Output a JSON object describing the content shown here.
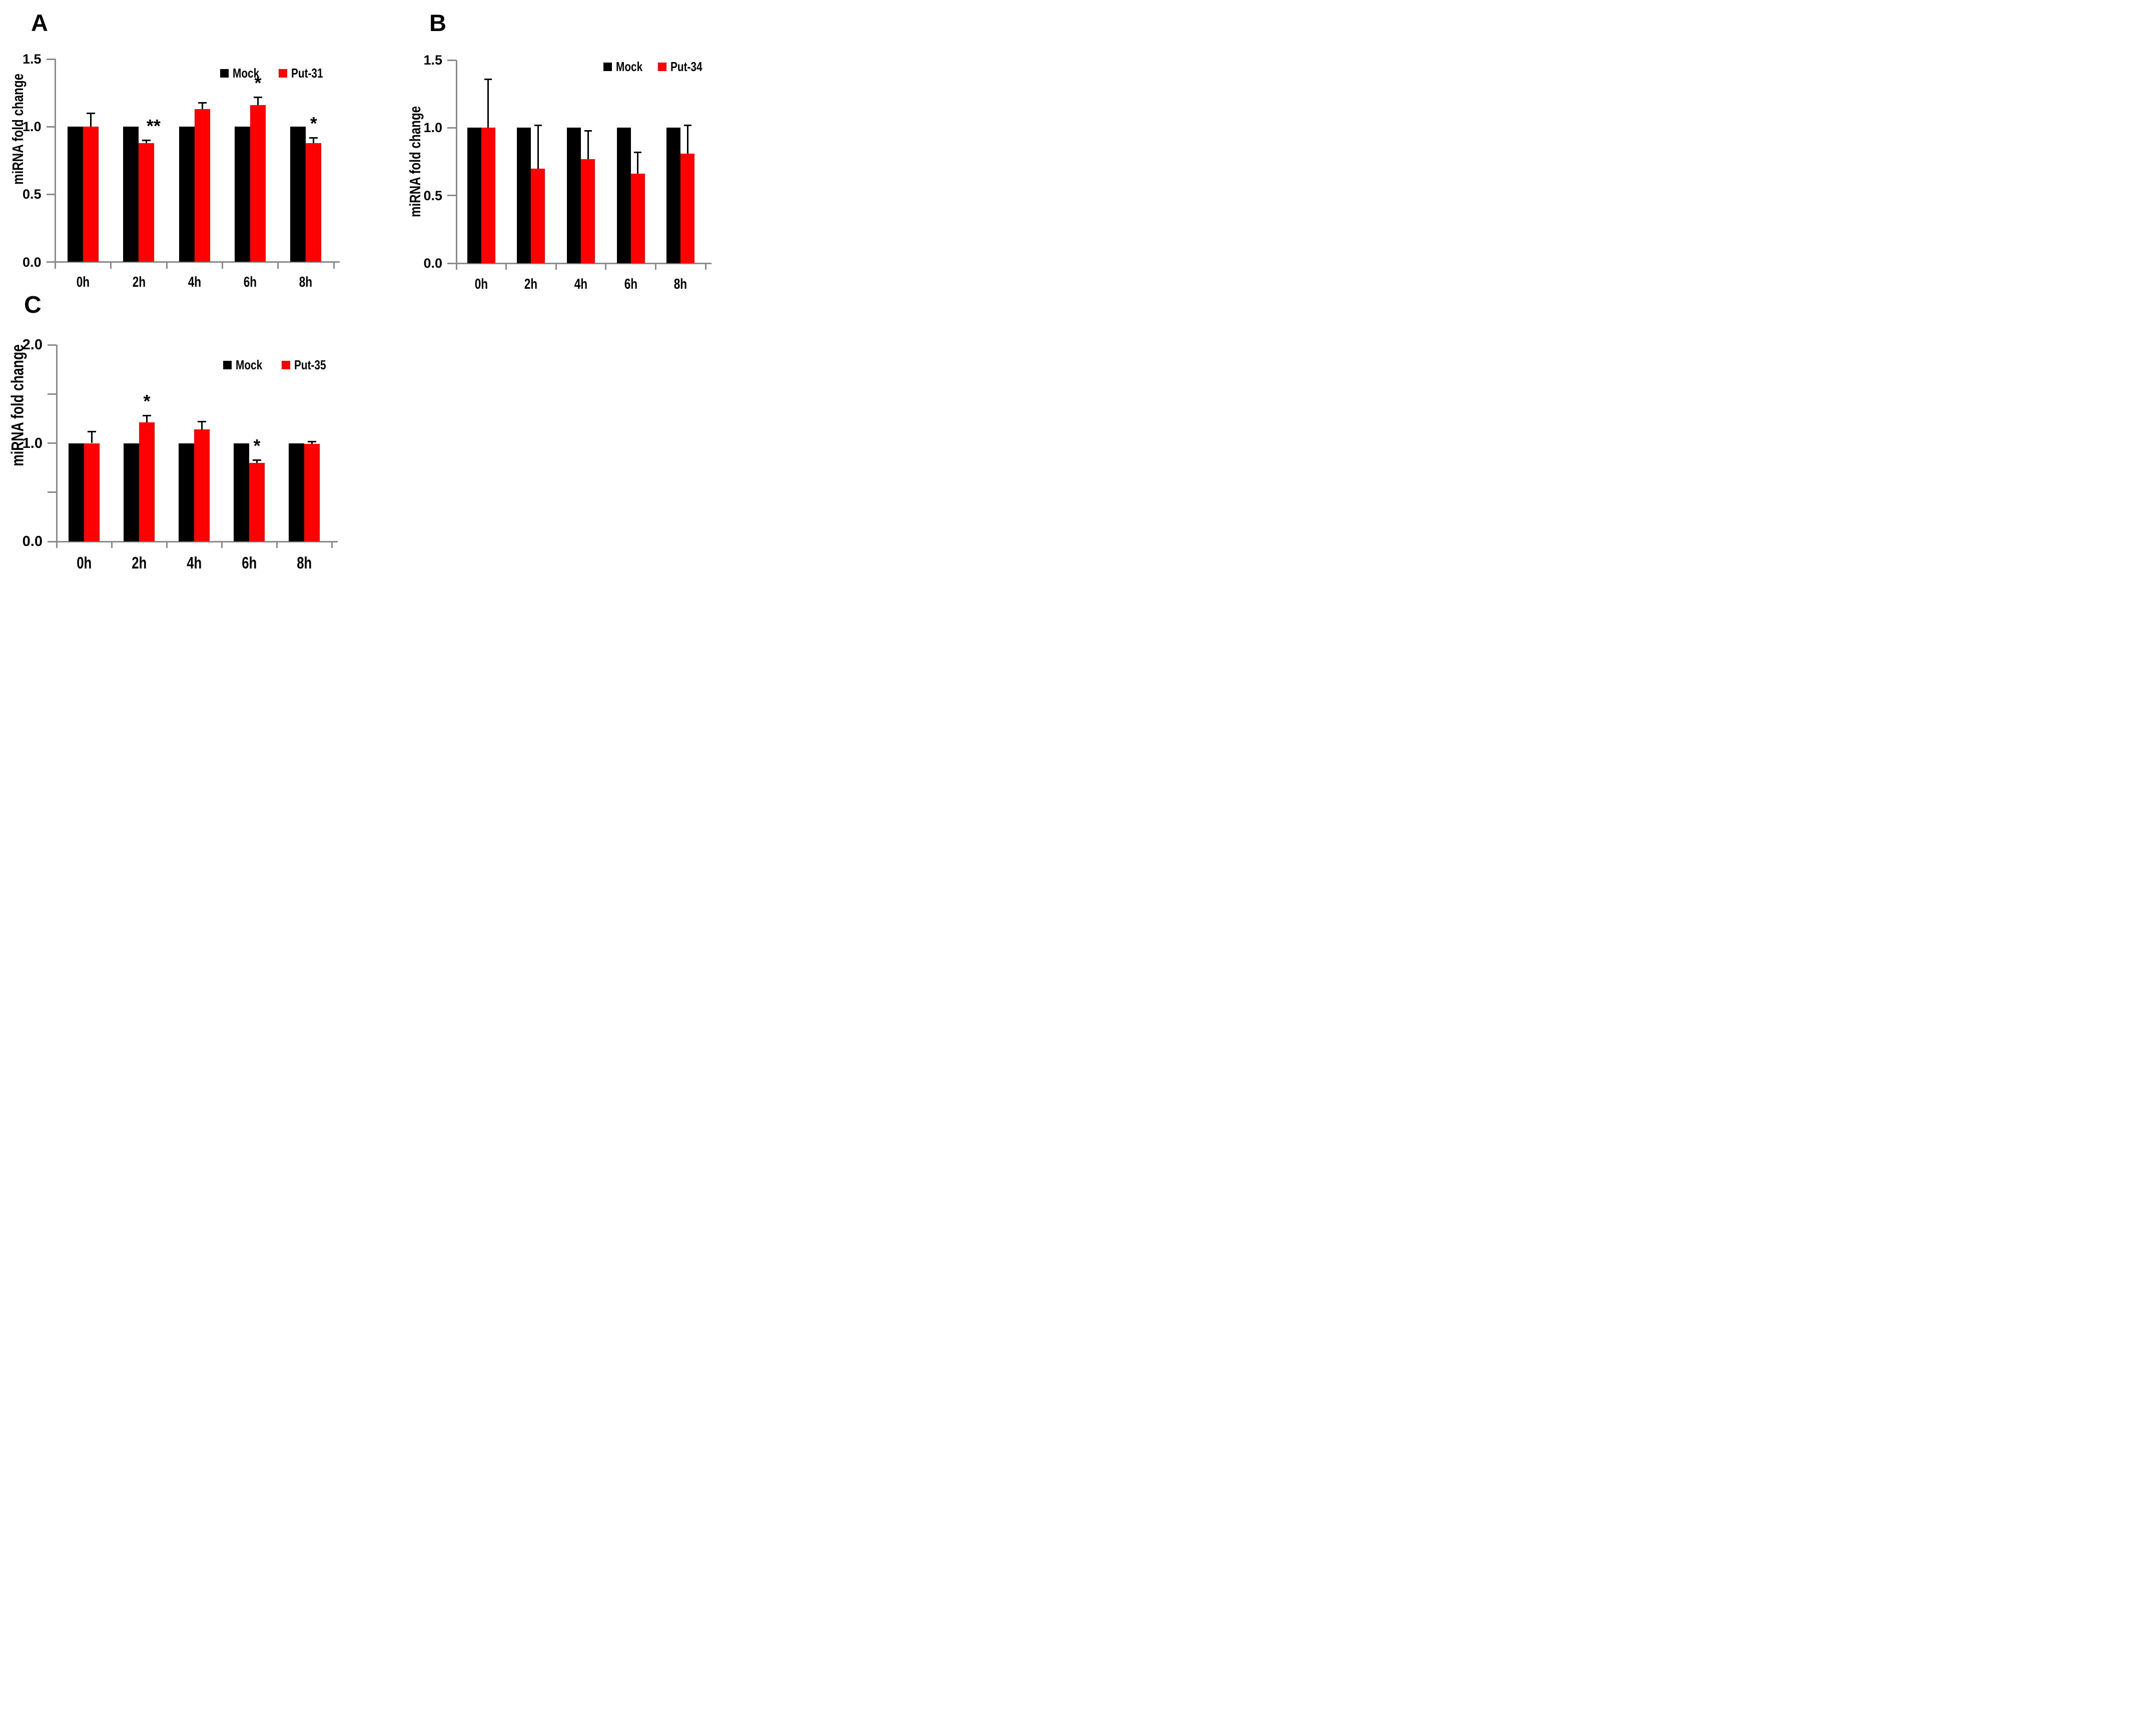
{
  "figure": {
    "background": "#ffffff",
    "panel_labels": [
      "A",
      "B",
      "C"
    ]
  },
  "colors": {
    "axis": "#8a8a8a",
    "mock": "#000000",
    "treatment": "#ff0000",
    "error_bar": "#000000",
    "text": "#000000"
  },
  "chart_data": [
    {
      "type": "bar",
      "panel_label": "A",
      "title": "",
      "xlabel": "",
      "ylabel": "miRNA fold change",
      "categories": [
        "0h",
        "2h",
        "4h",
        "6h",
        "8h"
      ],
      "series": [
        {
          "name": "Mock",
          "color": "#000000",
          "values": [
            1.0,
            1.0,
            1.0,
            1.0,
            1.0
          ],
          "errors_up": [
            0,
            0,
            0,
            0,
            0
          ]
        },
        {
          "name": "Put-31",
          "color": "#ff0000",
          "values": [
            1.0,
            0.88,
            1.13,
            1.16,
            0.88
          ],
          "errors_up": [
            0.1,
            0.02,
            0.05,
            0.06,
            0.04
          ]
        }
      ],
      "significance": [
        "",
        "**",
        "",
        "*",
        "*"
      ],
      "ylim": [
        0,
        1.5
      ],
      "yticks": [
        {
          "v": 0,
          "label": "0.0"
        },
        {
          "v": 0.5,
          "label": "0.5"
        },
        {
          "v": 1,
          "label": "1.0"
        },
        {
          "v": 1.5,
          "label": "1.5"
        }
      ],
      "legend_position": "top-right",
      "grid": false
    },
    {
      "type": "bar",
      "panel_label": "B",
      "title": "",
      "xlabel": "",
      "ylabel": "miRNA fold change",
      "categories": [
        "0h",
        "2h",
        "4h",
        "6h",
        "8h"
      ],
      "series": [
        {
          "name": "Mock",
          "color": "#000000",
          "values": [
            1.0,
            1.0,
            1.0,
            1.0,
            1.0
          ],
          "errors_up": [
            0,
            0,
            0,
            0,
            0
          ]
        },
        {
          "name": "Put-34",
          "color": "#ff0000",
          "values": [
            1.0,
            0.7,
            0.77,
            0.66,
            0.81
          ],
          "errors_up": [
            0.36,
            0.32,
            0.21,
            0.16,
            0.21
          ]
        }
      ],
      "significance": [
        "",
        "",
        "",
        "",
        ""
      ],
      "ylim": [
        0,
        1.5
      ],
      "yticks": [
        {
          "v": 0,
          "label": "0.0"
        },
        {
          "v": 0.5,
          "label": "0.5"
        },
        {
          "v": 1,
          "label": "1.0"
        },
        {
          "v": 1.5,
          "label": "1.5"
        }
      ],
      "legend_position": "top-right",
      "grid": false
    },
    {
      "type": "bar",
      "panel_label": "C",
      "title": "",
      "xlabel": "",
      "ylabel": "miRNA fold change",
      "categories": [
        "0h",
        "2h",
        "4h",
        "6h",
        "8h"
      ],
      "series": [
        {
          "name": "Mock",
          "color": "#000000",
          "values": [
            1.0,
            1.0,
            1.0,
            1.0,
            1.0
          ],
          "errors_up": [
            0,
            0,
            0,
            0,
            0
          ]
        },
        {
          "name": "Put-35",
          "color": "#ff0000",
          "values": [
            1.0,
            1.21,
            1.14,
            0.8,
            0.99
          ],
          "errors_up": [
            0.12,
            0.07,
            0.08,
            0.03,
            0.03
          ]
        }
      ],
      "significance": [
        "",
        "*",
        "",
        "*",
        ""
      ],
      "ylim": [
        0,
        2.0
      ],
      "yticks": [
        {
          "v": 0,
          "label": "0.0"
        },
        {
          "v": 0.5,
          "label": ""
        },
        {
          "v": 1,
          "label": "1.0"
        },
        {
          "v": 1.5,
          "label": ""
        },
        {
          "v": 2,
          "label": "2.0"
        }
      ],
      "legend_position": "top-right",
      "grid": false
    }
  ]
}
